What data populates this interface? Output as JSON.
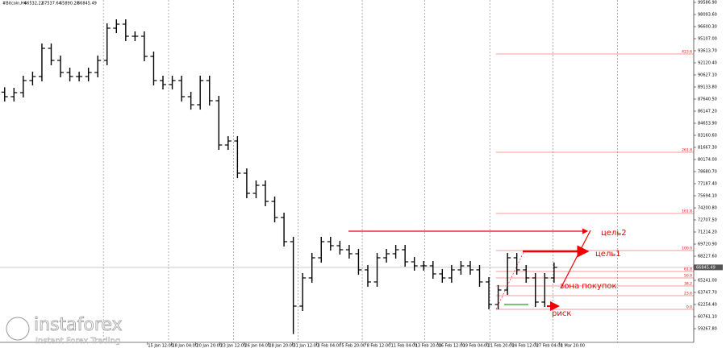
{
  "chart_data": {
    "type": "ohlc",
    "title": "#Bitcoin,H4",
    "ohlc_readout": [
      66532.22,
      67537.64,
      {
        "value": 65890.2,
        "label": "65890.20"
      },
      66845.49
    ],
    "ylim": [
      57577,
      99886
    ],
    "xlim": [
      -0.5,
      74
    ],
    "open": [
      88500,
      87940,
      88438,
      89931,
      90429,
      93913,
      92420,
      90927,
      90429,
      90429,
      90927,
      92420,
      96402,
      96900,
      95406,
      95406,
      92918,
      89931,
      89433,
      89931,
      87940,
      86942,
      89931,
      87442,
      81967,
      82465,
      78483,
      75994,
      76990,
      74998,
      73007,
      70021,
      62057,
      65541,
      68030,
      70021,
      69523,
      69025,
      68528,
      66537,
      65044,
      68030,
      68528,
      69025,
      67532,
      67035,
      67035,
      66040,
      65541,
      66537,
      67035,
      66537,
      65044,
      62256,
      64048,
      68030,
      66537,
      65541,
      62555,
      65541
    ],
    "high": [
      89100,
      89038,
      90531,
      91029,
      94513,
      94513,
      93020,
      91527,
      91029,
      91527,
      93020,
      97002,
      97500,
      97500,
      96006,
      96006,
      93518,
      90531,
      90531,
      90531,
      88540,
      90531,
      90531,
      88042,
      83065,
      83065,
      79083,
      77590,
      77590,
      75598,
      73607,
      70621,
      66141,
      68630,
      70621,
      70621,
      70123,
      69625,
      69128,
      67137,
      68630,
      69128,
      69625,
      69625,
      68132,
      67635,
      67635,
      66640,
      67137,
      67635,
      67635,
      67137,
      65644,
      64648,
      68630,
      68630,
      67137,
      66141,
      66141,
      67445
    ],
    "low": [
      87340,
      87340,
      87838,
      89331,
      89829,
      91820,
      90327,
      89829,
      89829,
      89829,
      90327,
      91820,
      95802,
      94806,
      94806,
      92318,
      89331,
      88833,
      88833,
      87340,
      86342,
      86342,
      86842,
      81367,
      81367,
      77883,
      75394,
      75394,
      74398,
      72407,
      69421,
      58600,
      61457,
      64941,
      67430,
      68923,
      68425,
      67928,
      65937,
      64444,
      64444,
      67430,
      67928,
      66932,
      66435,
      66435,
      65440,
      64941,
      64941,
      65937,
      65937,
      64444,
      61656,
      61656,
      63448,
      65937,
      64941,
      61955,
      61955,
      64941
    ],
    "close": [
      87940,
      88438,
      89931,
      90429,
      93913,
      92420,
      90927,
      90429,
      90429,
      90927,
      92420,
      96402,
      96900,
      95406,
      95406,
      92918,
      89931,
      89433,
      89931,
      87940,
      86942,
      89931,
      87442,
      81967,
      82465,
      78483,
      75994,
      76990,
      74998,
      73007,
      70021,
      62057,
      65541,
      68030,
      70021,
      69523,
      69025,
      68528,
      66537,
      65044,
      68030,
      68528,
      69025,
      67532,
      67035,
      67035,
      66040,
      65541,
      66537,
      67035,
      66537,
      65044,
      62256,
      64048,
      68030,
      66537,
      65541,
      62555,
      65541,
      66845.49
    ],
    "last_price": 66845.49,
    "yticks": [
      {
        "value": 99586.9,
        "label": "99586.90"
      },
      {
        "value": 98093.6,
        "label": "98093.60"
      },
      {
        "value": 96600.3,
        "label": "96600.30"
      },
      {
        "value": 95107.0,
        "label": "95107.00"
      },
      {
        "value": 93613.7,
        "label": "93613.70"
      },
      {
        "value": 92120.4,
        "label": "92120.40"
      },
      {
        "value": 90627.1,
        "label": "90627.10"
      },
      {
        "value": 89133.8,
        "label": "89133.80"
      },
      {
        "value": 87640.5,
        "label": "87640.50"
      },
      {
        "value": 86147.2,
        "label": "86147.20"
      },
      {
        "value": 84653.9,
        "label": "84653.90"
      },
      {
        "value": 83160.6,
        "label": "83160.60"
      },
      {
        "value": 81667.3,
        "label": "81667.30"
      },
      {
        "value": 80174.0,
        "label": "80174.00"
      },
      {
        "value": 78680.7,
        "label": "78680.70"
      },
      {
        "value": 77187.4,
        "label": "77187.40"
      },
      {
        "value": 75694.1,
        "label": "75694.10"
      },
      {
        "value": 74200.8,
        "label": "74200.80"
      },
      {
        "value": 72707.5,
        "label": "72707.50"
      },
      {
        "value": 71214.2,
        "label": "71214.20"
      },
      {
        "value": 69720.9,
        "label": "69720.90"
      },
      {
        "value": 68227.6,
        "label": "68227.60"
      },
      {
        "value": 66734.3,
        "label": "66734.30"
      },
      {
        "value": 65241.0,
        "label": "65241.00"
      },
      {
        "value": 63747.7,
        "label": "63747.70"
      },
      {
        "value": 62254.4,
        "label": "62254.40"
      },
      {
        "value": 60761.1,
        "label": "60761.10"
      },
      {
        "value": 59267.8,
        "label": "59267.80"
      }
    ],
    "xticks": [
      {
        "value": 15.3,
        "label": "15 Jan 12:00"
      },
      {
        "value": 17.9,
        "label": "18 Jan 04:00"
      },
      {
        "value": 20.5,
        "label": "20 Jan 20:00"
      },
      {
        "value": 23.1,
        "label": "23 Jan 12:00"
      },
      {
        "value": 25.7,
        "label": "26 Jan 04:00"
      },
      {
        "value": 28.3,
        "label": "28 Jan 20:00"
      },
      {
        "value": 30.9,
        "label": "31 Jan 12:00"
      },
      {
        "value": 33.5,
        "label": "3 Feb 04:00"
      },
      {
        "value": 36.1,
        "label": "5 Feb 20:00"
      },
      {
        "value": 38.8,
        "label": "8 Feb 12:00"
      },
      {
        "value": 41.4,
        "label": "11 Feb 04:00"
      },
      {
        "value": 44.0,
        "label": "13 Feb 20:00"
      },
      {
        "value": 46.5,
        "label": "16 Feb 12:00"
      },
      {
        "value": 49.1,
        "label": "19 Feb 04:00"
      },
      {
        "value": 51.8,
        "label": "21 Feb 20:00"
      },
      {
        "value": 54.4,
        "label": "24 Feb 12:00"
      },
      {
        "value": 57.0,
        "label": "27 Feb 04:00"
      },
      {
        "value": 59.6,
        "label": "1 Mar 20:00"
      }
    ],
    "xgrid": [
      10.6,
      17.6,
      24.6,
      31.5,
      38.4,
      45.1,
      52.1,
      58.9,
      65.8
    ],
    "fib_levels": [
      {
        "value": 93216,
        "label": "423.6"
      },
      {
        "value": 81071,
        "label": "261.8"
      },
      {
        "value": 73505,
        "label": "161.8"
      },
      {
        "value": 68926,
        "label": "100.0"
      },
      {
        "value": 66337,
        "label": "61.8"
      },
      {
        "value": 65541,
        "label": "50.0"
      },
      {
        "value": 64545,
        "label": "38.2"
      },
      {
        "value": 63350,
        "label": "23.6"
      },
      {
        "value": 61658,
        "label": "0.0"
      }
    ],
    "annotations": [
      {
        "text": "цель2",
        "value": 71315
      },
      {
        "text": "цель1",
        "value": 68825
      },
      {
        "text": "зона покупок",
        "value": 64545
      },
      {
        "text": "риск",
        "value": 62057
      }
    ],
    "watermark": {
      "brand": "instaforex",
      "tagline": "Instant Forex Trading"
    }
  }
}
